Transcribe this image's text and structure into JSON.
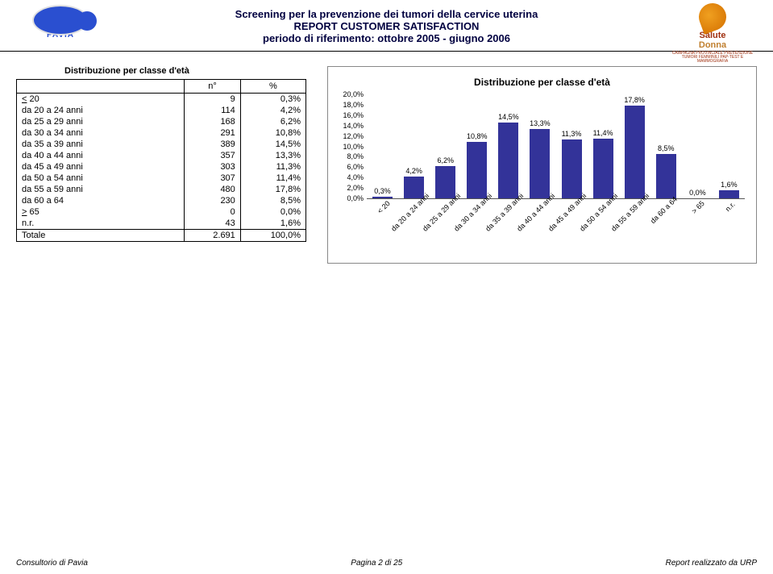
{
  "header": {
    "line1": "Screening per la prevenzione dei tumori della cervice uterina",
    "line2": "REPORT CUSTOMER SATISFACTION",
    "line3": "periodo di riferimento: ottobre 2005 - giugno 2006",
    "logo_left_text": "PAVIA",
    "logo_right_a": "Salute",
    "logo_right_b": "Donna",
    "logo_right_tag": "CAMPAGNA PROVINCIALE PREVENZIONE TUMORI FEMMINILI PAP-TEST E MAMMOGRAFIA"
  },
  "table": {
    "title": "Distribuzione per classe d'età",
    "col_n": "n°",
    "col_pct": "%",
    "rows": [
      {
        "label": "< 20",
        "n": "9",
        "pct": "0,3%",
        "underline_first": true
      },
      {
        "label": "da 20 a 24 anni",
        "n": "114",
        "pct": "4,2%"
      },
      {
        "label": "da 25 a 29 anni",
        "n": "168",
        "pct": "6,2%"
      },
      {
        "label": "da 30 a 34 anni",
        "n": "291",
        "pct": "10,8%"
      },
      {
        "label": "da 35 a 39 anni",
        "n": "389",
        "pct": "14,5%"
      },
      {
        "label": "da 40 a 44 anni",
        "n": "357",
        "pct": "13,3%"
      },
      {
        "label": "da 45 a 49 anni",
        "n": "303",
        "pct": "11,3%"
      },
      {
        "label": "da 50 a 54 anni",
        "n": "307",
        "pct": "11,4%"
      },
      {
        "label": "da 55 a 59 anni",
        "n": "480",
        "pct": "17,8%"
      },
      {
        "label": "da 60 a 64",
        "n": "230",
        "pct": "8,5%"
      },
      {
        "label": "> 65",
        "n": "0",
        "pct": "0,0%",
        "underline_first": true
      },
      {
        "label": "n.r.",
        "n": "43",
        "pct": "1,6%"
      }
    ],
    "total": {
      "label": "Totale",
      "n": "2.691",
      "pct": "100,0%"
    }
  },
  "chart": {
    "type": "bar",
    "title": "Distribuzione per classe d'età",
    "background_color": "#ffffff",
    "border_color": "#888888",
    "bar_color": "#333399",
    "bar_width_pct": 64,
    "label_fontsize": 9,
    "title_fontsize": 12,
    "ylim": [
      0,
      20
    ],
    "ytick_step": 2,
    "yticks": [
      "0,0%",
      "2,0%",
      "4,0%",
      "6,0%",
      "8,0%",
      "10,0%",
      "12,0%",
      "14,0%",
      "16,0%",
      "18,0%",
      "20,0%"
    ],
    "categories": [
      "< 20",
      "da 20 a 24 anni",
      "da 25 a 29 anni",
      "da 30 a 34 anni",
      "da 35 a 39 anni",
      "da 40 a 44 anni",
      "da 45 a 49 anni",
      "da 50 a 54 anni",
      "da 55 a 59 anni",
      "da 60 a 64",
      "> 65",
      "n.r."
    ],
    "values": [
      0.3,
      4.2,
      6.2,
      10.8,
      14.5,
      13.3,
      11.3,
      11.4,
      17.8,
      8.5,
      0.0,
      1.6
    ],
    "value_labels": [
      "0,3%",
      "4,2%",
      "6,2%",
      "10,8%",
      "14,5%",
      "13,3%",
      "11,3%",
      "11,4%",
      "17,8%",
      "8,5%",
      "0,0%",
      "1,6%"
    ]
  },
  "footer": {
    "left": "Consultorio di Pavia",
    "center": "Pagina 2 di 25",
    "right": "Report realizzato da URP"
  }
}
